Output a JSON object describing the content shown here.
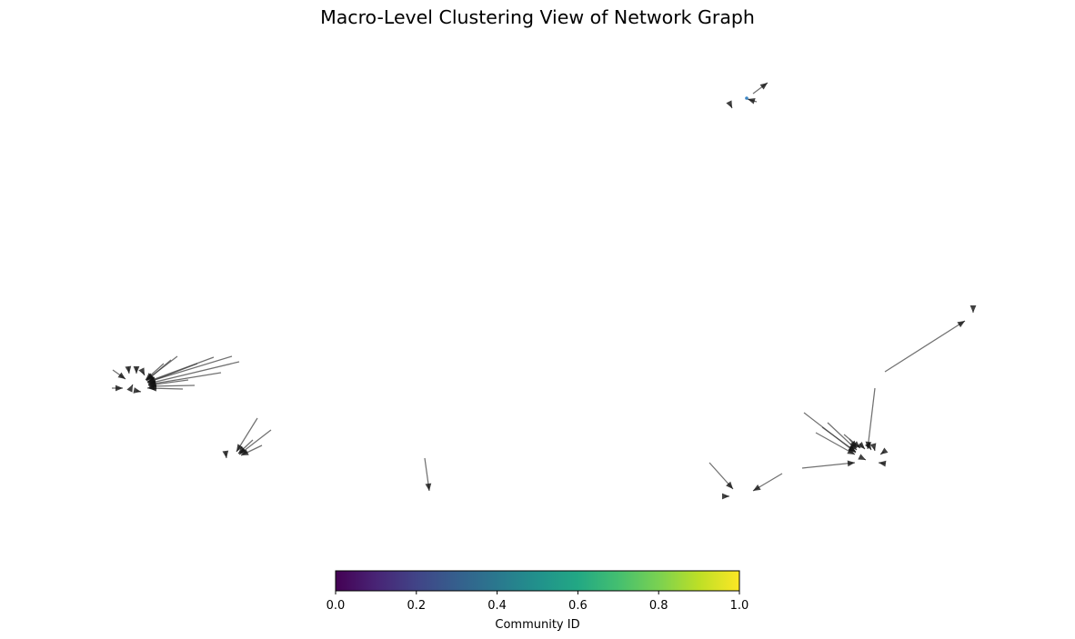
{
  "chart_data": {
    "type": "network",
    "title": "Macro-Level Clustering View of Network Graph",
    "colorbar": {
      "label": "Community ID",
      "colormap": "viridis",
      "range": [
        0.0,
        1.0
      ],
      "ticks": [
        "0.0",
        "0.2",
        "0.4",
        "0.6",
        "0.8",
        "1.0"
      ],
      "orientation": "horizontal",
      "placement": "bottom-center"
    },
    "edge_color": "#3a3a3a",
    "node_color": "#3b86c4",
    "directed": true
  }
}
